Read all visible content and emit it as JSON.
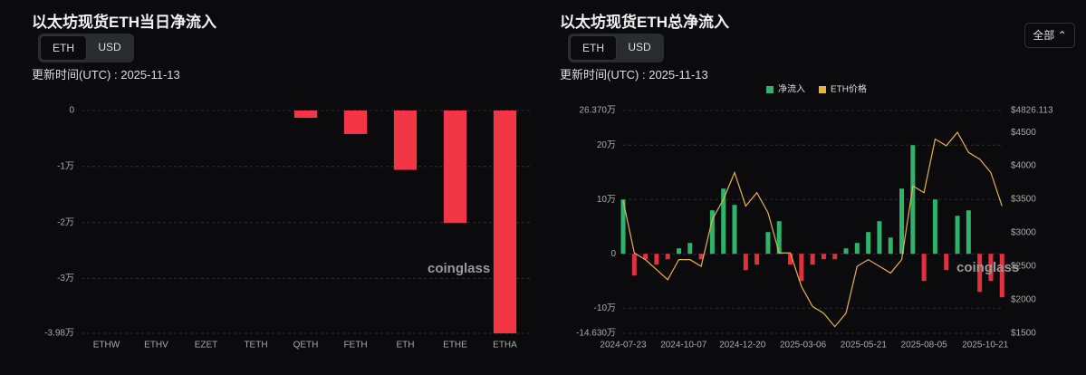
{
  "range_select": "全部",
  "chart_data": [
    {
      "type": "bar",
      "title": "以太坊现货ETH当日净流入",
      "toggle_options": [
        "ETH",
        "USD"
      ],
      "update_label": "更新时间(UTC) : 2025-11-13",
      "watermark": "coinglass",
      "categories": [
        "ETHW",
        "ETHV",
        "EZET",
        "TETH",
        "QETH",
        "FETH",
        "ETH",
        "ETHE",
        "ETHA"
      ],
      "values": [
        0,
        0,
        0,
        0,
        -0.13,
        -0.42,
        -1.06,
        -2.01,
        -3.98
      ],
      "color": "#f23645",
      "ylim": [
        -3.98,
        0
      ],
      "yticks": [
        0,
        {
          "value": -1,
          "label": "-1万"
        },
        {
          "value": -2,
          "label": "-2万"
        },
        {
          "value": -3,
          "label": "-3万"
        },
        {
          "value": -3.98,
          "label": "-3.98万"
        }
      ],
      "grid": true
    },
    {
      "type": "bar-line",
      "title": "以太坊现货ETH总净流入",
      "toggle_options": [
        "ETH",
        "USD"
      ],
      "update_label": "更新时间(UTC) : 2025-11-13",
      "watermark": "coinglass",
      "x": [
        "2024-07-23",
        "2024-08-06",
        "2024-08-20",
        "2024-09-03",
        "2024-09-17",
        "2024-10-01",
        "2024-10-15",
        "2024-10-29",
        "2024-11-12",
        "2024-11-26",
        "2024-12-10",
        "2024-12-24",
        "2025-01-07",
        "2025-01-21",
        "2025-02-04",
        "2025-02-18",
        "2025-03-04",
        "2025-03-18",
        "2025-04-01",
        "2025-04-15",
        "2025-04-29",
        "2025-05-13",
        "2025-05-27",
        "2025-06-10",
        "2025-06-24",
        "2025-07-08",
        "2025-07-22",
        "2025-08-05",
        "2025-08-19",
        "2025-09-02",
        "2025-09-16",
        "2025-09-30",
        "2025-10-14",
        "2025-10-28",
        "2025-11-11"
      ],
      "xlim": [
        "2024-07-23",
        "2025-11-13"
      ],
      "xticks": [
        "2024-07-23",
        "2024-10-07",
        "2024-12-20",
        "2025-03-06",
        "2025-05-21",
        "2025-08-05",
        "2025-10-21"
      ],
      "series": [
        {
          "name": "净流入",
          "color": "#2fb36b",
          "negative_color": "#e0323e",
          "values": [
            10,
            -4,
            -1,
            -2,
            -1,
            1,
            2,
            -1,
            8,
            12,
            9,
            -3,
            -2,
            4,
            6,
            -2,
            -5,
            -2,
            -1,
            -1,
            1,
            2,
            4,
            6,
            3,
            12,
            20,
            -5,
            10,
            -3,
            7,
            8,
            -7,
            -5,
            -8
          ]
        },
        {
          "name": "ETH价格",
          "color": "#e8b04b",
          "axis": "y2",
          "values": [
            3480,
            2700,
            2600,
            2450,
            2300,
            2600,
            2600,
            2500,
            3200,
            3500,
            3900,
            3400,
            3600,
            3300,
            2700,
            2700,
            2200,
            1900,
            1800,
            1600,
            1800,
            2500,
            2600,
            2500,
            2400,
            2600,
            3700,
            3600,
            4400,
            4300,
            4500,
            4200,
            4100,
            3900,
            3400
          ]
        }
      ],
      "ylim": [
        -14.63,
        26.37
      ],
      "yticks": [
        {
          "value": 26.37,
          "label": "26.370万"
        },
        {
          "value": 20,
          "label": "20万"
        },
        {
          "value": 10,
          "label": "10万"
        },
        0,
        {
          "value": -10,
          "label": "-10万"
        },
        {
          "value": -14.63,
          "label": "-14.630万"
        }
      ],
      "y2lim": [
        1500,
        4826.113
      ],
      "y2ticks": [
        {
          "value": 4826.113,
          "label": "$4826.113"
        },
        {
          "value": 4500,
          "label": "$4500"
        },
        {
          "value": 4000,
          "label": "$4000"
        },
        {
          "value": 3500,
          "label": "$3500"
        },
        {
          "value": 3000,
          "label": "$3000"
        },
        {
          "value": 2500,
          "label": "$2500"
        },
        {
          "value": 2000,
          "label": "$2000"
        },
        {
          "value": 1500,
          "label": "$1500"
        }
      ],
      "grid": true
    }
  ]
}
